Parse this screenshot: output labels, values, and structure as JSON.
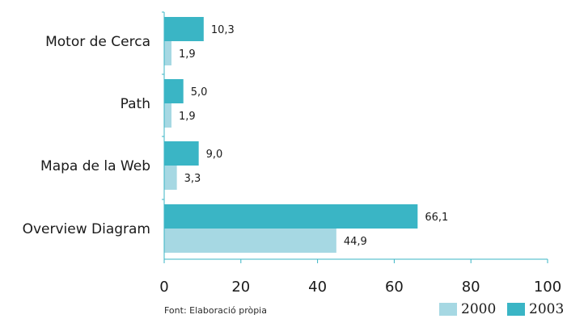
{
  "chart_data": {
    "type": "bar",
    "orientation": "horizontal",
    "categories": [
      "Motor de Cerca",
      "Path",
      "Mapa de la Web",
      "Overview Diagram"
    ],
    "series": [
      {
        "name": "2003",
        "values": [
          10.3,
          5.0,
          9.0,
          66.1
        ],
        "labels": [
          "10,3",
          "5,0",
          "9,0",
          "66,1"
        ],
        "color": "#3ab5c5"
      },
      {
        "name": "2000",
        "values": [
          1.9,
          1.9,
          3.3,
          44.9
        ],
        "labels": [
          "1,9",
          "1,9",
          "3,3",
          "44,9"
        ],
        "color": "#a6d8e3"
      }
    ],
    "xlim": [
      0,
      100
    ],
    "xticks": [
      0,
      20,
      40,
      60,
      80,
      100
    ],
    "grid": false,
    "legend_position": "bottom-right",
    "legend_order": [
      "2000",
      "2003"
    ]
  },
  "source_note": "Font: Elaboració pròpia",
  "axis_color": "#3ab5c5"
}
